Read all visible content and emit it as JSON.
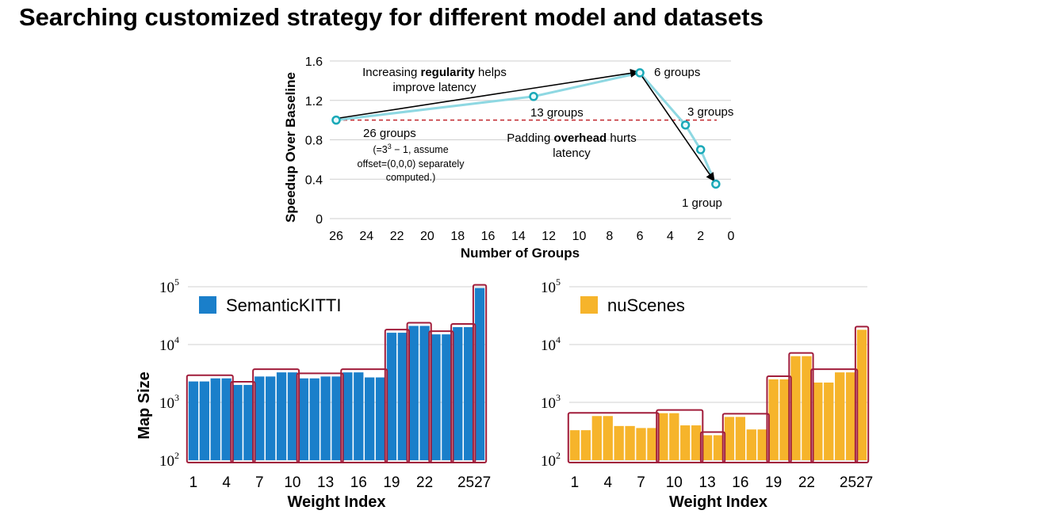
{
  "title": "Searching customized strategy for different model and datasets",
  "chart_data": [
    {
      "type": "line",
      "xlabel": "Number of Groups",
      "ylabel": "Speedup Over Baseline",
      "x_ticks": [
        "26",
        "24",
        "22",
        "20",
        "18",
        "16",
        "14",
        "12",
        "10",
        "8",
        "6",
        "4",
        "2",
        "0"
      ],
      "y_ticks": [
        "0",
        "0.4",
        "0.8",
        "1.2",
        "1.6"
      ],
      "xlim": [
        26,
        0
      ],
      "ylim": [
        0,
        1.6
      ],
      "series": [
        {
          "x": [
            26,
            13,
            6,
            3,
            2,
            1
          ],
          "y": [
            1.0,
            1.24,
            1.48,
            0.95,
            0.7,
            0.35
          ]
        }
      ],
      "baseline_y": 1.0,
      "colors": {
        "line": "#8ed8e2",
        "marker": "#1aa9b8",
        "baseline": "#c1272d",
        "arrow": "#000000"
      },
      "annotations": {
        "arrow_up_text_1": "Increasing ",
        "arrow_up_bold": "regularity",
        "arrow_up_text_2": " helps",
        "arrow_up_line2": "improve latency",
        "label_6": "6 groups",
        "label_13": "13 groups",
        "label_3": "3 groups",
        "label_1": "1 group",
        "label_26": "26 groups",
        "note_26_a_pre": "(=3",
        "note_26_a_sup": "3",
        "note_26_a_post": " − 1, assume",
        "note_26_b": "offset=(0,0,0) separately",
        "note_26_c": "computed.)",
        "pad_text_1": "Padding ",
        "pad_bold": "overhead",
        "pad_text_2": " hurts",
        "pad_line2": "latency"
      }
    },
    {
      "type": "bar",
      "legend": "SemanticKITTI",
      "ylabel": "Map Size",
      "xlabel": "Weight Index",
      "y_scale": "log",
      "ylim": [
        100,
        100000
      ],
      "y_tick_base": "10",
      "y_tick_exponents": [
        "2",
        "3",
        "4",
        "5"
      ],
      "x_ticks": [
        "1",
        "4",
        "7",
        "10",
        "13",
        "16",
        "19",
        "22",
        "2527"
      ],
      "tick_indices": [
        1,
        4,
        7,
        10,
        13,
        16,
        19,
        22
      ],
      "values": [
        2300,
        2300,
        2600,
        2600,
        2000,
        2000,
        2800,
        2800,
        3300,
        3300,
        2600,
        2600,
        2800,
        2800,
        3300,
        3300,
        2700,
        2700,
        16000,
        16000,
        21000,
        21000,
        15000,
        15000,
        20000,
        20000,
        95000
      ],
      "groups": [
        [
          1,
          4
        ],
        [
          5,
          6
        ],
        [
          7,
          10
        ],
        [
          11,
          14
        ],
        [
          15,
          18
        ],
        [
          19,
          20
        ],
        [
          21,
          22
        ],
        [
          23,
          24
        ],
        [
          25,
          26
        ],
        [
          27,
          27
        ]
      ],
      "colors": {
        "bar": "#1a7fca",
        "group_box": "#a11d3b",
        "legend_swatch": "#1a7fca"
      }
    },
    {
      "type": "bar",
      "legend": "nuScenes",
      "xlabel": "Weight Index",
      "y_scale": "log",
      "ylim": [
        100,
        100000
      ],
      "y_tick_base": "10",
      "y_tick_exponents": [
        "2",
        "3",
        "4",
        "5"
      ],
      "x_ticks": [
        "1",
        "4",
        "7",
        "10",
        "13",
        "16",
        "19",
        "22",
        "2527"
      ],
      "tick_indices": [
        1,
        4,
        7,
        10,
        13,
        16,
        19,
        22
      ],
      "values": [
        330,
        330,
        580,
        580,
        390,
        390,
        360,
        360,
        650,
        650,
        400,
        400,
        270,
        270,
        560,
        560,
        340,
        340,
        2500,
        2500,
        6300,
        6300,
        2200,
        2200,
        3300,
        3300,
        18000
      ],
      "groups": [
        [
          1,
          8
        ],
        [
          9,
          12
        ],
        [
          13,
          14
        ],
        [
          15,
          18
        ],
        [
          19,
          20
        ],
        [
          21,
          22
        ],
        [
          23,
          26
        ],
        [
          27,
          27
        ]
      ],
      "colors": {
        "bar": "#f6b42b",
        "group_box": "#a11d3b",
        "legend_swatch": "#f6b42b"
      }
    }
  ]
}
